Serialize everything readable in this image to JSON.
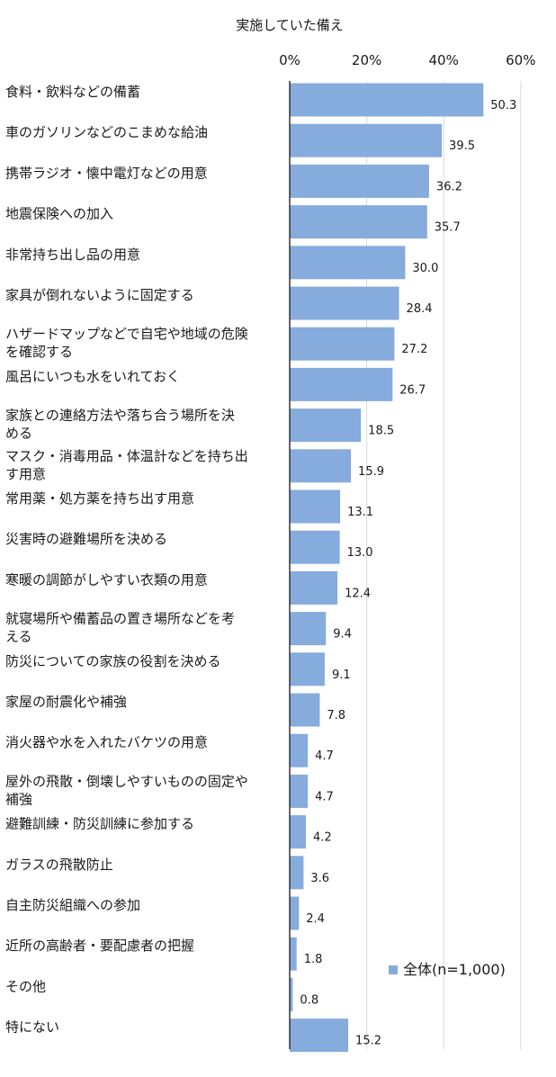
{
  "chart_data": {
    "type": "bar",
    "orientation": "horizontal",
    "title": "実施していた備え",
    "xlim": [
      0,
      60
    ],
    "ticks": [
      0,
      20,
      40,
      60
    ],
    "tick_labels": [
      "0%",
      "20%",
      "40%",
      "60%"
    ],
    "grid": true,
    "legend_position": "bottom-right",
    "bar_color": "#86ABDD",
    "categories": [
      [
        "食料・飲料などの備蓄"
      ],
      [
        "車のガソリンなどのこまめな給油"
      ],
      [
        "携帯ラジオ・懐中電灯などの用意"
      ],
      [
        "地震保険への加入"
      ],
      [
        "非常持ち出し品の用意"
      ],
      [
        "家具が倒れないように固定する"
      ],
      [
        "ハザードマップなどで自宅や地域の危険",
        "を確認する"
      ],
      [
        "風呂にいつも水をいれておく"
      ],
      [
        "家族との連絡方法や落ち合う場所を決",
        "める"
      ],
      [
        "マスク・消毒用品・体温計などを持ち出",
        "す用意"
      ],
      [
        "常用薬・処方薬を持ち出す用意"
      ],
      [
        "災害時の避難場所を決める"
      ],
      [
        "寒暖の調節がしやすい衣類の用意"
      ],
      [
        "就寝場所や備蓄品の置き場所などを考",
        "える"
      ],
      [
        "防災についての家族の役割を決める"
      ],
      [
        "家屋の耐震化や補強"
      ],
      [
        "消火器や水を入れたバケツの用意"
      ],
      [
        "屋外の飛散・倒壊しやすいものの固定や",
        "補強"
      ],
      [
        "避難訓練・防災訓練に参加する"
      ],
      [
        "ガラスの飛散防止"
      ],
      [
        "自主防災組織への参加"
      ],
      [
        "近所の高齢者・要配慮者の把握"
      ],
      [
        "その他"
      ],
      [
        "特にない"
      ]
    ],
    "series": [
      {
        "name": "全体(n=1,000)",
        "values": [
          50.3,
          39.5,
          36.2,
          35.7,
          30.0,
          28.4,
          27.2,
          26.7,
          18.5,
          15.9,
          13.1,
          13.0,
          12.4,
          9.4,
          9.1,
          7.8,
          4.7,
          4.7,
          4.2,
          3.6,
          2.4,
          1.8,
          0.8,
          15.2
        ],
        "labels": [
          "50.3",
          "39.5",
          "36.2",
          "35.7",
          "30.0",
          "28.4",
          "27.2",
          "26.7",
          "18.5",
          "15.9",
          "13.1",
          "13.0",
          "12.4",
          "9.4",
          "9.1",
          "7.8",
          "4.7",
          "4.7",
          "4.2",
          "3.6",
          "2.4",
          "1.8",
          "0.8",
          "15.2"
        ]
      }
    ]
  }
}
